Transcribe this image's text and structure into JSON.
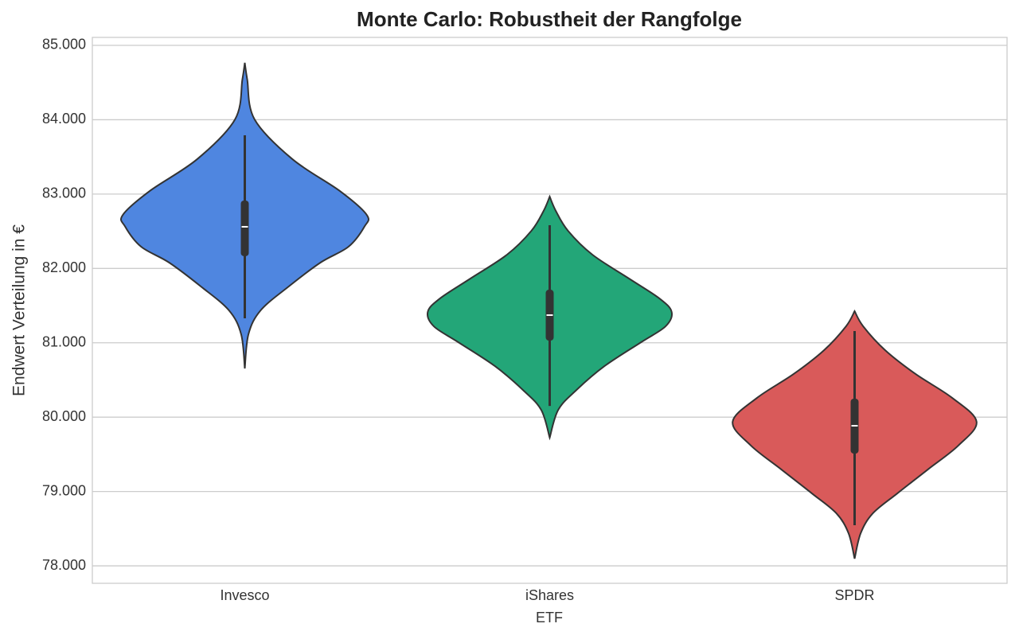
{
  "chart_data": {
    "type": "violin",
    "title": "Monte Carlo: Robustheit der Rangfolge",
    "xlabel": "ETF",
    "ylabel": "Endwert Verteilung in €",
    "categories": [
      "Invesco",
      "iShares",
      "SPDR"
    ],
    "ylim": [
      77765,
      85107
    ],
    "yticks": [
      {
        "value": 78000,
        "label": "78.000"
      },
      {
        "value": 79000,
        "label": "79.000"
      },
      {
        "value": 80000,
        "label": "80.000"
      },
      {
        "value": 81000,
        "label": "81.000"
      },
      {
        "value": 82000,
        "label": "82.000"
      },
      {
        "value": 83000,
        "label": "83.000"
      },
      {
        "value": 84000,
        "label": "84.000"
      },
      {
        "value": 85000,
        "label": "85.000"
      }
    ],
    "grid": true,
    "series": [
      {
        "color": "#4f86e0",
        "median": 82560,
        "q1": 82164,
        "q3": 82913,
        "whisker_low": 81329,
        "whisker_high": 83790,
        "kde_y": [
          84765,
          84540,
          84005,
          83470,
          83041,
          82720,
          82560,
          82292,
          82078,
          81757,
          81436,
          81115,
          80654
        ],
        "density": [
          0,
          0.02,
          0.08,
          0.39,
          0.78,
          1.0,
          0.98,
          0.85,
          0.62,
          0.36,
          0.13,
          0.03,
          0
        ]
      },
      {
        "color": "#23a678",
        "median": 81372,
        "q1": 81029,
        "q3": 81714,
        "whisker_low": 80151,
        "whisker_high": 82581,
        "kde_y": [
          82966,
          82774,
          82506,
          82185,
          81864,
          81596,
          81414,
          81221,
          81008,
          80687,
          80366,
          80098,
          79724
        ],
        "density": [
          0,
          0.05,
          0.15,
          0.35,
          0.65,
          0.9,
          1.0,
          0.95,
          0.75,
          0.45,
          0.22,
          0.07,
          0
        ]
      },
      {
        "color": "#d95a5a",
        "median": 79884,
        "q1": 79509,
        "q3": 80248,
        "whisker_low": 78546,
        "whisker_high": 81158,
        "kde_y": [
          81425,
          81222,
          80901,
          80580,
          80259,
          79938,
          79617,
          79295,
          78974,
          78707,
          78439,
          78097
        ],
        "density": [
          0,
          0.07,
          0.25,
          0.5,
          0.8,
          1.0,
          0.85,
          0.6,
          0.35,
          0.15,
          0.05,
          0
        ]
      }
    ]
  }
}
